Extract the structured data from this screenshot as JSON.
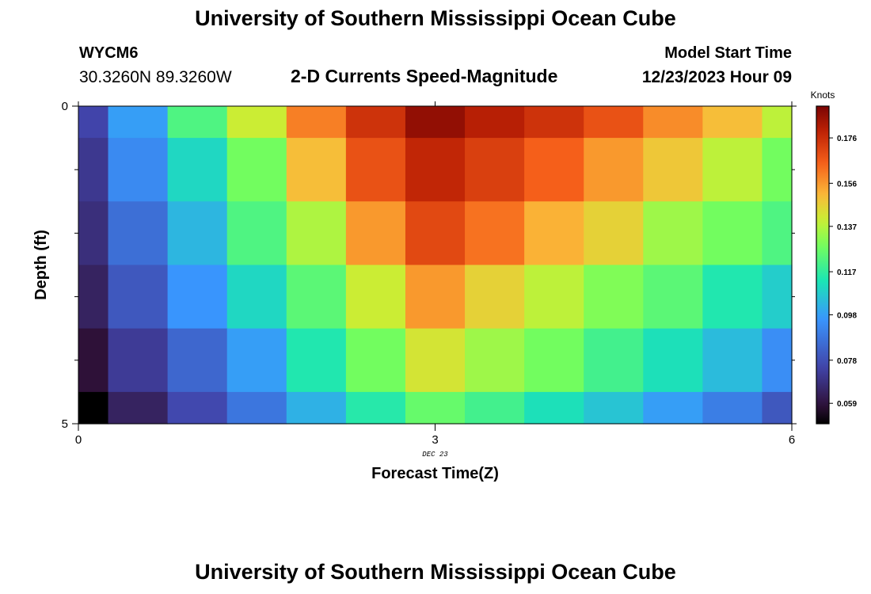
{
  "header": {
    "title": "University of Southern Mississippi Ocean Cube",
    "station_id": "WYCM6",
    "station_coords": "30.3260N  89.3260W",
    "plot_title": "2-D Currents Speed-Magnitude",
    "model_start_label": "Model Start Time",
    "model_start_datetime": "12/23/2023 Hour 09"
  },
  "footer": {
    "title": "University of Southern Mississippi Ocean Cube"
  },
  "chart_data": {
    "type": "heatmap",
    "title": "2-D Currents Speed-Magnitude",
    "xlabel": "Forecast Time(Z)",
    "ylabel": "Depth (ft)",
    "x_ticks": [
      {
        "value": 0,
        "label": "0"
      },
      {
        "value": 3,
        "label": "3"
      },
      {
        "value": 6,
        "label": "6"
      }
    ],
    "x_sublabel": "DEC 23",
    "x_sublabel_at": 3,
    "y_ticks": [
      {
        "value": 0,
        "label": "0"
      },
      {
        "value": 5,
        "label": "5"
      }
    ],
    "y_minor_ticks": [
      1,
      2,
      3,
      4
    ],
    "xlim": [
      0,
      6
    ],
    "ylim": [
      0,
      5
    ],
    "x_cells": [
      0,
      0.5,
      1,
      1.5,
      2,
      2.5,
      3,
      3.5,
      4,
      4.5,
      5,
      5.5,
      6
    ],
    "y_cells": [
      0,
      1,
      2,
      3,
      4,
      5
    ],
    "values": [
      [
        0.075,
        0.098,
        0.122,
        0.14,
        0.16,
        0.175,
        0.186,
        0.18,
        0.175,
        0.168,
        0.158,
        0.15,
        0.138
      ],
      [
        0.071,
        0.093,
        0.11,
        0.128,
        0.15,
        0.168,
        0.178,
        0.172,
        0.165,
        0.156,
        0.148,
        0.138,
        0.128
      ],
      [
        0.068,
        0.086,
        0.103,
        0.122,
        0.136,
        0.156,
        0.17,
        0.162,
        0.152,
        0.146,
        0.134,
        0.128,
        0.122
      ],
      [
        0.064,
        0.08,
        0.096,
        0.11,
        0.124,
        0.14,
        0.156,
        0.146,
        0.138,
        0.13,
        0.124,
        0.114,
        0.108
      ],
      [
        0.058,
        0.072,
        0.084,
        0.098,
        0.114,
        0.128,
        0.142,
        0.134,
        0.128,
        0.12,
        0.112,
        0.104,
        0.094
      ],
      [
        0.04,
        0.064,
        0.076,
        0.088,
        0.102,
        0.115,
        0.126,
        0.12,
        0.112,
        0.106,
        0.098,
        0.09,
        0.08
      ]
    ],
    "colorbar": {
      "label": "Knots",
      "min": 0.05,
      "max": 0.19,
      "ticks": [
        {
          "value": 0.059,
          "label": "0.059"
        },
        {
          "value": 0.078,
          "label": "0.078"
        },
        {
          "value": 0.098,
          "label": "0.098"
        },
        {
          "value": 0.117,
          "label": "0.117"
        },
        {
          "value": 0.137,
          "label": "0.137"
        },
        {
          "value": 0.156,
          "label": "0.156"
        },
        {
          "value": 0.176,
          "label": "0.176"
        }
      ]
    }
  }
}
